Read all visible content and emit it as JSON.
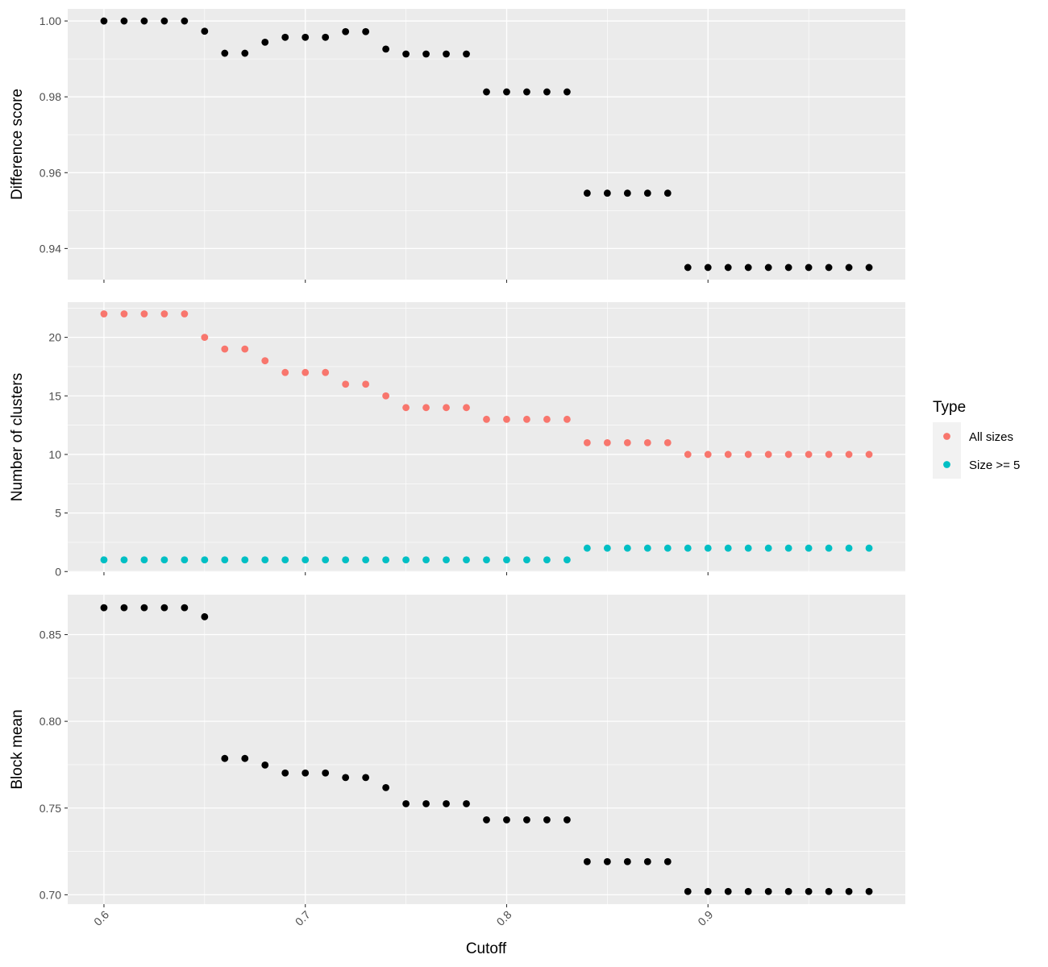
{
  "chart_data": {
    "type": "scatter",
    "xlabel": "Cutoff",
    "xticks": [
      0.6,
      0.7,
      0.8,
      0.9
    ],
    "xlim": [
      0.582,
      0.998
    ],
    "x": [
      0.6,
      0.61,
      0.62,
      0.63,
      0.64,
      0.65,
      0.66,
      0.67,
      0.68,
      0.69,
      0.7,
      0.71,
      0.72,
      0.73,
      0.74,
      0.75,
      0.76,
      0.77,
      0.78,
      0.79,
      0.8,
      0.81,
      0.82,
      0.83,
      0.84,
      0.85,
      0.86,
      0.87,
      0.88,
      0.89,
      0.9,
      0.91,
      0.92,
      0.93,
      0.94,
      0.95,
      0.96,
      0.97,
      0.98
    ],
    "panels": [
      {
        "ylabel": "Difference score",
        "ylim": [
          0.9318,
          1.0032
        ],
        "yticks": [
          0.94,
          0.96,
          0.98,
          1.0
        ],
        "ytick_labels": [
          "0.94",
          "0.96",
          "0.98",
          "1.00"
        ],
        "series": [
          {
            "color": "#000000",
            "values": [
              1.0,
              1.0,
              1.0,
              1.0,
              1.0,
              0.9973,
              0.9915,
              0.9915,
              0.9944,
              0.9957,
              0.9957,
              0.9957,
              0.9972,
              0.9972,
              0.9926,
              0.9913,
              0.9913,
              0.9913,
              0.9913,
              0.9813,
              0.9813,
              0.9813,
              0.9813,
              0.9813,
              0.9546,
              0.9546,
              0.9546,
              0.9546,
              0.9546,
              0.935,
              0.935,
              0.935,
              0.935,
              0.935,
              0.935,
              0.935,
              0.935,
              0.935,
              0.935
            ]
          }
        ]
      },
      {
        "ylabel": "Number of clusters",
        "ylim": [
          -0.05,
          23.0
        ],
        "yticks": [
          0,
          5,
          10,
          15,
          20
        ],
        "ytick_labels": [
          "0",
          "5",
          "10",
          "15",
          "20"
        ],
        "series": [
          {
            "name": "All sizes",
            "color": "#F8766D",
            "values": [
              22,
              22,
              22,
              22,
              22,
              20,
              19,
              19,
              18,
              17,
              17,
              17,
              16,
              16,
              15,
              14,
              14,
              14,
              14,
              13,
              13,
              13,
              13,
              13,
              11,
              11,
              11,
              11,
              11,
              10,
              10,
              10,
              10,
              10,
              10,
              10,
              10,
              10,
              10
            ]
          },
          {
            "name": "Size >= 5",
            "color": "#00BFC4",
            "values": [
              1,
              1,
              1,
              1,
              1,
              1,
              1,
              1,
              1,
              1,
              1,
              1,
              1,
              1,
              1,
              1,
              1,
              1,
              1,
              1,
              1,
              1,
              1,
              1,
              2,
              2,
              2,
              2,
              2,
              2,
              2,
              2,
              2,
              2,
              2,
              2,
              2,
              2,
              2
            ]
          }
        ]
      },
      {
        "ylabel": "Block mean",
        "ylim": [
          0.6946,
          0.873
        ],
        "yticks": [
          0.7,
          0.75,
          0.8,
          0.85
        ],
        "ytick_labels": [
          "0.70",
          "0.75",
          "0.80",
          "0.85"
        ],
        "series": [
          {
            "color": "#000000",
            "values": [
              0.8655,
              0.8655,
              0.8655,
              0.8655,
              0.8655,
              0.8603,
              0.7786,
              0.7786,
              0.7748,
              0.7702,
              0.7702,
              0.7702,
              0.7676,
              0.7676,
              0.7618,
              0.7525,
              0.7525,
              0.7525,
              0.7525,
              0.7432,
              0.7432,
              0.7432,
              0.7432,
              0.7432,
              0.7191,
              0.7191,
              0.7191,
              0.7191,
              0.7191,
              0.7019,
              0.7019,
              0.7019,
              0.7019,
              0.7019,
              0.7019,
              0.7019,
              0.7019,
              0.7019,
              0.7019
            ]
          }
        ]
      }
    ],
    "legend": {
      "title": "Type",
      "position": "right",
      "items": [
        {
          "label": "All sizes",
          "color": "#F8766D"
        },
        {
          "label": "Size >= 5",
          "color": "#00BFC4"
        }
      ]
    },
    "grid": true,
    "panel_background": "#EBEBEB"
  }
}
